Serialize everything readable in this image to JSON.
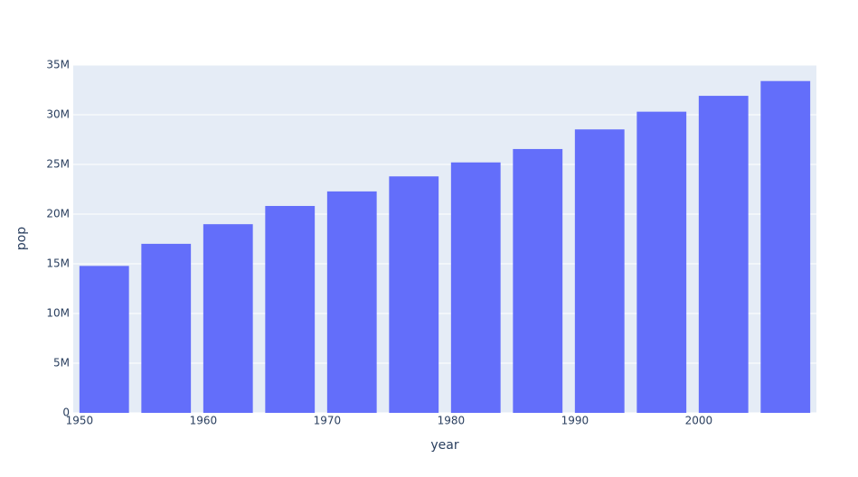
{
  "chart_data": {
    "type": "bar",
    "x": [
      1952,
      1957,
      1962,
      1967,
      1972,
      1977,
      1982,
      1987,
      1992,
      1997,
      2002,
      2007
    ],
    "values": [
      14785584,
      17010154,
      18985849,
      20819767,
      22284500,
      23796400,
      25201900,
      26549700,
      28523502,
      30305843,
      31902268,
      33390141
    ],
    "color": "#636efa",
    "x_label": "year",
    "y_label": "pop",
    "xlim": [
      1949.5,
      2009.5
    ],
    "xticks": [
      1950,
      1960,
      1970,
      1980,
      1990,
      2000
    ],
    "ylim": [
      0,
      35000000
    ],
    "yticks": [
      0,
      {
        "value": 5000000,
        "label": "5M"
      },
      {
        "value": 10000000,
        "label": "10M"
      },
      {
        "value": 15000000,
        "label": "15M"
      },
      {
        "value": 20000000,
        "label": "20M"
      },
      {
        "value": 25000000,
        "label": "25M"
      },
      {
        "value": 30000000,
        "label": "30M"
      },
      {
        "value": 35000000,
        "label": "35M"
      }
    ],
    "grid": true
  }
}
